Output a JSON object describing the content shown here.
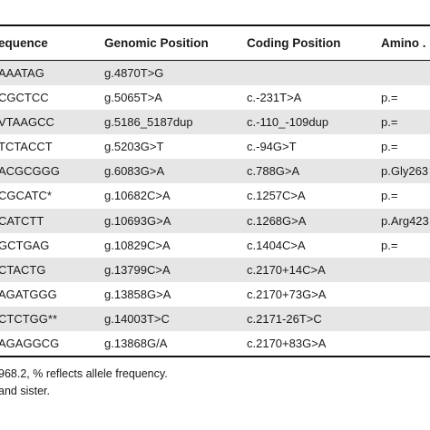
{
  "table": {
    "headers": [
      "equence",
      "Genomic Position",
      "Coding Position",
      "Amino ."
    ],
    "rows": [
      [
        "AAATAG",
        "g.4870T>G",
        "",
        ""
      ],
      [
        "CGCTCC",
        "g.5065T>A",
        "c.-231T>A",
        "p.="
      ],
      [
        "VTAAGCC",
        "g.5186_5187dup",
        "c.-110_-109dup",
        "p.="
      ],
      [
        "TCTACCT",
        "g.5203G>T",
        "c.-94G>T",
        "p.="
      ],
      [
        "ACGCGGG",
        "g.6083G>A",
        "c.788G>A",
        "p.Gly263"
      ],
      [
        "CGCATC*",
        "g.10682C>A",
        "c.1257C>A",
        "p.="
      ],
      [
        "CATCTT",
        "g.10693G>A",
        "c.1268G>A",
        "p.Arg423"
      ],
      [
        "GCTGAG",
        "g.10829C>A",
        "c.1404C>A",
        "p.="
      ],
      [
        "CTACTG",
        "g.13799C>A",
        "c.2170+14C>A",
        ""
      ],
      [
        "AGATGGG",
        "g.13858G>A",
        "c.2170+73G>A",
        ""
      ],
      [
        "CTCTGG**",
        "g.14003T>C",
        "c.2171-26T>C",
        ""
      ],
      [
        "AGAGGCG",
        "g.13868G/A",
        "c.2170+83G>A",
        ""
      ]
    ]
  },
  "footnotes": [
    "968.2, % reflects allele frequency.",
    "and sister."
  ]
}
